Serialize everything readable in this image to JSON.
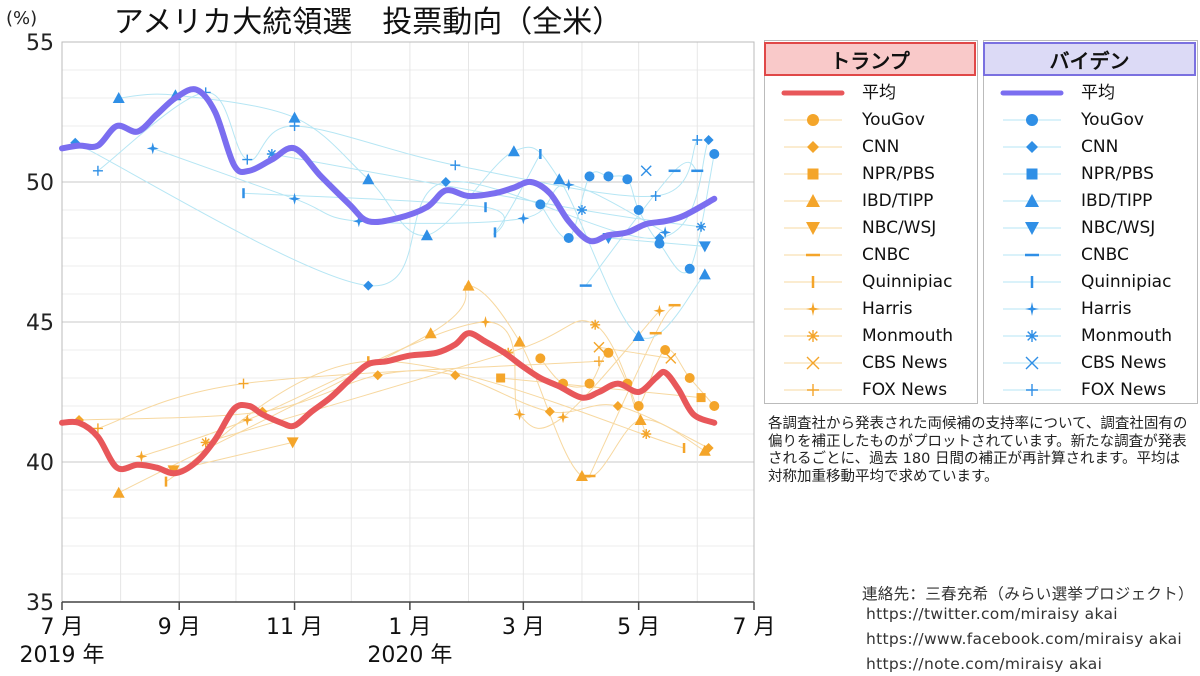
{
  "chart_data": {
    "type": "line",
    "title": "アメリカ大統領選　投票動向（全米）",
    "unit_label": "(%)",
    "ylim": [
      35,
      55
    ],
    "y_ticks": [
      35,
      40,
      45,
      50,
      55
    ],
    "x_range": [
      "2019-07-01",
      "2020-07-01"
    ],
    "x_ticks": [
      {
        "date": "2019-07-01",
        "label": "7 月",
        "year_label": "2019 年"
      },
      {
        "date": "2019-09-01",
        "label": "9 月",
        "year_label": ""
      },
      {
        "date": "2019-11-01",
        "label": "11 月",
        "year_label": ""
      },
      {
        "date": "2020-01-01",
        "label": "1 月",
        "year_label": "2020 年"
      },
      {
        "date": "2020-03-01",
        "label": "3 月",
        "year_label": ""
      },
      {
        "date": "2020-05-01",
        "label": "5 月",
        "year_label": ""
      },
      {
        "date": "2020-07-01",
        "label": "7 月",
        "year_label": ""
      }
    ],
    "grid": true,
    "legend_placement": "right",
    "pollsters": [
      {
        "name": "YouGov",
        "marker": "circle"
      },
      {
        "name": "CNN",
        "marker": "diamond"
      },
      {
        "name": "NPR/PBS",
        "marker": "square"
      },
      {
        "name": "IBD/TIPP",
        "marker": "triangle-up"
      },
      {
        "name": "NBC/WSJ",
        "marker": "triangle-down"
      },
      {
        "name": "CNBC",
        "marker": "dash"
      },
      {
        "name": "Quinnipiac",
        "marker": "vbar"
      },
      {
        "name": "Harris",
        "marker": "star4"
      },
      {
        "name": "Monmouth",
        "marker": "asterisk"
      },
      {
        "name": "CBS News",
        "marker": "x"
      },
      {
        "name": "FOX News",
        "marker": "plus"
      }
    ],
    "candidates": [
      {
        "name": "トランプ",
        "average_label": "平均",
        "line_color": "#e8575a",
        "marker_color": "#f4a52a",
        "thin_color": "#f7d8a0",
        "header_bg": "#f9c9c9",
        "header_border": "#e04848",
        "average": [
          [
            "2019-07-01",
            41.4
          ],
          [
            "2019-07-10",
            41.4
          ],
          [
            "2019-07-20",
            40.9
          ],
          [
            "2019-07-30",
            39.8
          ],
          [
            "2019-08-10",
            39.9
          ],
          [
            "2019-08-20",
            39.8
          ],
          [
            "2019-08-30",
            39.6
          ],
          [
            "2019-09-10",
            40.0
          ],
          [
            "2019-09-20",
            40.8
          ],
          [
            "2019-09-30",
            41.9
          ],
          [
            "2019-10-08",
            42.0
          ],
          [
            "2019-10-15",
            41.7
          ],
          [
            "2019-10-25",
            41.4
          ],
          [
            "2019-11-01",
            41.3
          ],
          [
            "2019-11-10",
            41.8
          ],
          [
            "2019-11-20",
            42.3
          ],
          [
            "2019-12-01",
            43.0
          ],
          [
            "2019-12-10",
            43.5
          ],
          [
            "2019-12-20",
            43.6
          ],
          [
            "2020-01-01",
            43.8
          ],
          [
            "2020-01-15",
            43.9
          ],
          [
            "2020-01-25",
            44.2
          ],
          [
            "2020-02-01",
            44.6
          ],
          [
            "2020-02-10",
            44.3
          ],
          [
            "2020-02-20",
            43.9
          ],
          [
            "2020-03-01",
            43.4
          ],
          [
            "2020-03-10",
            43.0
          ],
          [
            "2020-03-20",
            42.7
          ],
          [
            "2020-04-01",
            42.3
          ],
          [
            "2020-04-10",
            42.5
          ],
          [
            "2020-04-20",
            42.8
          ],
          [
            "2020-05-01",
            42.5
          ],
          [
            "2020-05-10",
            43.0
          ],
          [
            "2020-05-15",
            43.2
          ],
          [
            "2020-05-22",
            42.6
          ],
          [
            "2020-05-30",
            41.7
          ],
          [
            "2020-06-10",
            41.4
          ]
        ],
        "polls": [
          {
            "pollster": "CNN",
            "date": "2019-07-10",
            "value": 41.5
          },
          {
            "pollster": "FOX News",
            "date": "2019-07-20",
            "value": 41.2
          },
          {
            "pollster": "IBD/TIPP",
            "date": "2019-07-31",
            "value": 38.9
          },
          {
            "pollster": "Harris",
            "date": "2019-08-12",
            "value": 40.2
          },
          {
            "pollster": "Quinnipiac",
            "date": "2019-08-25",
            "value": 39.3
          },
          {
            "pollster": "NBC/WSJ",
            "date": "2019-08-29",
            "value": 39.7
          },
          {
            "pollster": "Monmouth",
            "date": "2019-09-15",
            "value": 40.7
          },
          {
            "pollster": "FOX News",
            "date": "2019-10-05",
            "value": 42.8
          },
          {
            "pollster": "Harris",
            "date": "2019-10-07",
            "value": 41.5
          },
          {
            "pollster": "CNN",
            "date": "2019-10-15",
            "value": 41.8
          },
          {
            "pollster": "NBC/WSJ",
            "date": "2019-10-31",
            "value": 40.7
          },
          {
            "pollster": "Quinnipiac",
            "date": "2019-12-10",
            "value": 43.6
          },
          {
            "pollster": "CNN",
            "date": "2019-12-15",
            "value": 43.1
          },
          {
            "pollster": "IBD/TIPP",
            "date": "2020-01-12",
            "value": 44.6
          },
          {
            "pollster": "CNN",
            "date": "2020-01-25",
            "value": 43.1
          },
          {
            "pollster": "IBD/TIPP",
            "date": "2020-02-01",
            "value": 46.3
          },
          {
            "pollster": "Harris",
            "date": "2020-02-10",
            "value": 45.0
          },
          {
            "pollster": "NPR/PBS",
            "date": "2020-02-18",
            "value": 43.0
          },
          {
            "pollster": "Monmouth",
            "date": "2020-02-22",
            "value": 43.9
          },
          {
            "pollster": "IBD/TIPP",
            "date": "2020-02-28",
            "value": 44.3
          },
          {
            "pollster": "Harris",
            "date": "2020-02-28",
            "value": 41.7
          },
          {
            "pollster": "YouGov",
            "date": "2020-03-10",
            "value": 43.7
          },
          {
            "pollster": "CNN",
            "date": "2020-03-15",
            "value": 41.8
          },
          {
            "pollster": "YouGov",
            "date": "2020-03-22",
            "value": 42.8
          },
          {
            "pollster": "Harris",
            "date": "2020-03-22",
            "value": 41.6
          },
          {
            "pollster": "IBD/TIPP",
            "date": "2020-04-01",
            "value": 39.5
          },
          {
            "pollster": "CNBC",
            "date": "2020-04-05",
            "value": 39.5
          },
          {
            "pollster": "YouGov",
            "date": "2020-04-05",
            "value": 42.8
          },
          {
            "pollster": "Monmouth",
            "date": "2020-04-08",
            "value": 44.9
          },
          {
            "pollster": "CBS News",
            "date": "2020-04-10",
            "value": 44.1
          },
          {
            "pollster": "FOX News",
            "date": "2020-04-10",
            "value": 43.6
          },
          {
            "pollster": "YouGov",
            "date": "2020-04-15",
            "value": 43.9
          },
          {
            "pollster": "CNN",
            "date": "2020-04-20",
            "value": 42.0
          },
          {
            "pollster": "YouGov",
            "date": "2020-04-25",
            "value": 42.8
          },
          {
            "pollster": "YouGov",
            "date": "2020-05-01",
            "value": 42.0
          },
          {
            "pollster": "IBD/TIPP",
            "date": "2020-05-02",
            "value": 41.5
          },
          {
            "pollster": "Monmouth",
            "date": "2020-05-05",
            "value": 41.0
          },
          {
            "pollster": "CNBC",
            "date": "2020-05-10",
            "value": 44.6
          },
          {
            "pollster": "Harris",
            "date": "2020-05-12",
            "value": 45.4
          },
          {
            "pollster": "YouGov",
            "date": "2020-05-15",
            "value": 44.0
          },
          {
            "pollster": "CBS News",
            "date": "2020-05-18",
            "value": 43.7
          },
          {
            "pollster": "CNBC",
            "date": "2020-05-20",
            "value": 45.6
          },
          {
            "pollster": "Quinnipiac",
            "date": "2020-05-25",
            "value": 40.5
          },
          {
            "pollster": "YouGov",
            "date": "2020-05-28",
            "value": 43.0
          },
          {
            "pollster": "NPR/PBS",
            "date": "2020-06-03",
            "value": 42.3
          },
          {
            "pollster": "IBD/TIPP",
            "date": "2020-06-05",
            "value": 40.4
          },
          {
            "pollster": "CNN",
            "date": "2020-06-07",
            "value": 40.5
          },
          {
            "pollster": "YouGov",
            "date": "2020-06-10",
            "value": 42.0
          }
        ]
      },
      {
        "name": "バイデン",
        "average_label": "平均",
        "line_color": "#7b6ef0",
        "marker_color": "#2f8fe6",
        "thin_color": "#b6e6f4",
        "header_bg": "#dcdaf6",
        "header_border": "#7a70e0",
        "average": [
          [
            "2019-07-01",
            51.2
          ],
          [
            "2019-07-10",
            51.3
          ],
          [
            "2019-07-20",
            51.3
          ],
          [
            "2019-07-30",
            52.0
          ],
          [
            "2019-08-10",
            51.8
          ],
          [
            "2019-08-20",
            52.4
          ],
          [
            "2019-08-30",
            53.0
          ],
          [
            "2019-09-10",
            53.3
          ],
          [
            "2019-09-20",
            52.5
          ],
          [
            "2019-09-30",
            50.6
          ],
          [
            "2019-10-08",
            50.4
          ],
          [
            "2019-10-20",
            50.8
          ],
          [
            "2019-11-01",
            51.2
          ],
          [
            "2019-11-15",
            50.2
          ],
          [
            "2019-11-30",
            49.2
          ],
          [
            "2019-12-10",
            48.6
          ],
          [
            "2019-12-25",
            48.7
          ],
          [
            "2020-01-10",
            49.1
          ],
          [
            "2020-01-20",
            49.7
          ],
          [
            "2020-02-01",
            49.5
          ],
          [
            "2020-02-15",
            49.6
          ],
          [
            "2020-02-25",
            49.8
          ],
          [
            "2020-03-05",
            50.0
          ],
          [
            "2020-03-15",
            49.6
          ],
          [
            "2020-03-25",
            48.6
          ],
          [
            "2020-04-05",
            47.9
          ],
          [
            "2020-04-15",
            48.1
          ],
          [
            "2020-04-25",
            48.2
          ],
          [
            "2020-05-05",
            48.5
          ],
          [
            "2020-05-15",
            48.6
          ],
          [
            "2020-05-25",
            48.8
          ],
          [
            "2020-06-10",
            49.4
          ]
        ],
        "polls": [
          {
            "pollster": "CNN",
            "date": "2019-07-08",
            "value": 51.4
          },
          {
            "pollster": "FOX News",
            "date": "2019-07-20",
            "value": 50.4
          },
          {
            "pollster": "IBD/TIPP",
            "date": "2019-07-31",
            "value": 53.0
          },
          {
            "pollster": "Harris",
            "date": "2019-08-18",
            "value": 51.2
          },
          {
            "pollster": "IBD/TIPP",
            "date": "2019-08-30",
            "value": 53.1
          },
          {
            "pollster": "FOX News",
            "date": "2019-09-15",
            "value": 53.2
          },
          {
            "pollster": "Quinnipiac",
            "date": "2019-10-05",
            "value": 49.6
          },
          {
            "pollster": "FOX News",
            "date": "2019-10-07",
            "value": 50.8
          },
          {
            "pollster": "Monmouth",
            "date": "2019-10-20",
            "value": 51.0
          },
          {
            "pollster": "IBD/TIPP",
            "date": "2019-11-01",
            "value": 52.3
          },
          {
            "pollster": "FOX News",
            "date": "2019-11-01",
            "value": 52.0
          },
          {
            "pollster": "Harris",
            "date": "2019-11-01",
            "value": 49.4
          },
          {
            "pollster": "Harris",
            "date": "2019-12-05",
            "value": 48.6
          },
          {
            "pollster": "IBD/TIPP",
            "date": "2019-12-10",
            "value": 50.1
          },
          {
            "pollster": "CNN",
            "date": "2019-12-10",
            "value": 46.3
          },
          {
            "pollster": "IBD/TIPP",
            "date": "2020-01-10",
            "value": 48.1
          },
          {
            "pollster": "CNN",
            "date": "2020-01-20",
            "value": 50.0
          },
          {
            "pollster": "FOX News",
            "date": "2020-01-25",
            "value": 50.6
          },
          {
            "pollster": "Quinnipiac",
            "date": "2020-02-10",
            "value": 49.1
          },
          {
            "pollster": "Quinnipiac",
            "date": "2020-02-15",
            "value": 48.2
          },
          {
            "pollster": "IBD/TIPP",
            "date": "2020-02-25",
            "value": 51.1
          },
          {
            "pollster": "Harris",
            "date": "2020-03-01",
            "value": 48.7
          },
          {
            "pollster": "Quinnipiac",
            "date": "2020-03-10",
            "value": 51.0
          },
          {
            "pollster": "YouGov",
            "date": "2020-03-10",
            "value": 49.2
          },
          {
            "pollster": "IBD/TIPP",
            "date": "2020-03-20",
            "value": 50.1
          },
          {
            "pollster": "Harris",
            "date": "2020-03-25",
            "value": 49.9
          },
          {
            "pollster": "YouGov",
            "date": "2020-03-25",
            "value": 48.0
          },
          {
            "pollster": "Monmouth",
            "date": "2020-04-01",
            "value": 49.0
          },
          {
            "pollster": "CNBC",
            "date": "2020-04-03",
            "value": 46.3
          },
          {
            "pollster": "YouGov",
            "date": "2020-04-05",
            "value": 50.2
          },
          {
            "pollster": "YouGov",
            "date": "2020-04-15",
            "value": 50.2
          },
          {
            "pollster": "NBC/WSJ",
            "date": "2020-04-15",
            "value": 48.0
          },
          {
            "pollster": "YouGov",
            "date": "2020-04-25",
            "value": 50.1
          },
          {
            "pollster": "YouGov",
            "date": "2020-05-01",
            "value": 49.0
          },
          {
            "pollster": "IBD/TIPP",
            "date": "2020-05-01",
            "value": 44.5
          },
          {
            "pollster": "CBS News",
            "date": "2020-05-05",
            "value": 50.4
          },
          {
            "pollster": "CNN",
            "date": "2020-05-12",
            "value": 48.0
          },
          {
            "pollster": "YouGov",
            "date": "2020-05-12",
            "value": 47.8
          },
          {
            "pollster": "Harris",
            "date": "2020-05-15",
            "value": 48.2
          },
          {
            "pollster": "FOX News",
            "date": "2020-05-10",
            "value": 49.5
          },
          {
            "pollster": "CNBC",
            "date": "2020-05-20",
            "value": 50.4
          },
          {
            "pollster": "YouGov",
            "date": "2020-05-28",
            "value": 46.9
          },
          {
            "pollster": "CNBC",
            "date": "2020-06-01",
            "value": 50.4
          },
          {
            "pollster": "FOX News",
            "date": "2020-06-01",
            "value": 51.5
          },
          {
            "pollster": "Monmouth",
            "date": "2020-06-03",
            "value": 48.4
          },
          {
            "pollster": "NBC/WSJ",
            "date": "2020-06-05",
            "value": 47.7
          },
          {
            "pollster": "IBD/TIPP",
            "date": "2020-06-05",
            "value": 46.7
          },
          {
            "pollster": "CNN",
            "date": "2020-06-07",
            "value": 51.5
          },
          {
            "pollster": "YouGov",
            "date": "2020-06-10",
            "value": 51.0
          }
        ]
      }
    ]
  },
  "note": "各調査社から発表された両候補の支持率について、調査社固有の偏りを補正したものがプロットされています。新たな調査が発表されるごとに、過去 180 日間の補正が再計算されます。平均は対称加重移動平均で求めています。",
  "contact": {
    "heading": "連絡先：三春充希（みらい選挙プロジェクト）",
    "links": [
      "https://twitter.com/miraisy akai",
      "https://www.facebook.com/miraisy akai",
      "https://note.com/miraisy akai"
    ]
  }
}
